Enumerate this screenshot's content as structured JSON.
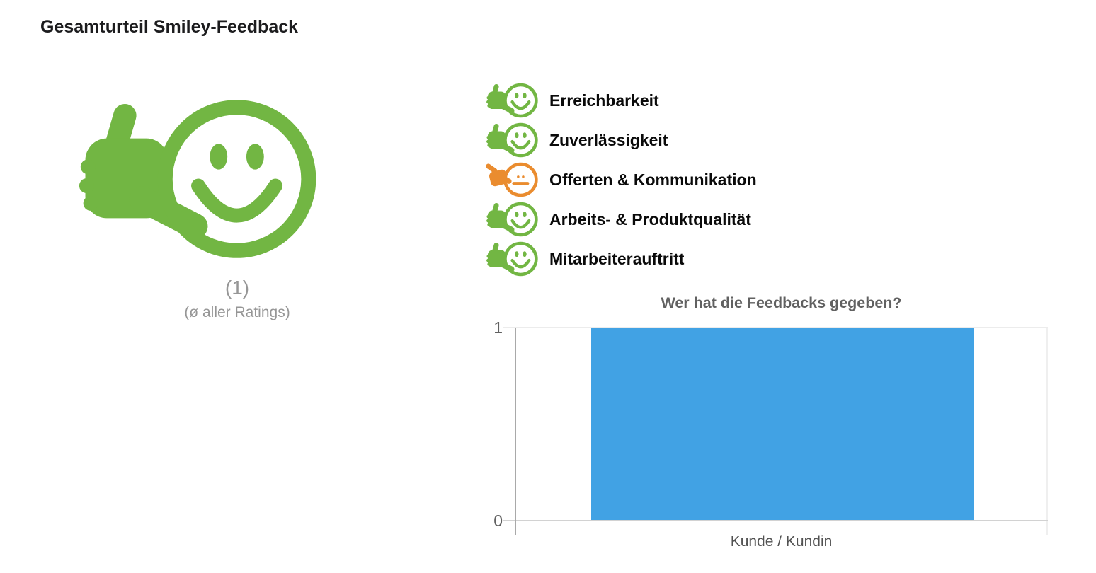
{
  "page": {
    "title": "Gesamturteil Smiley-Feedback"
  },
  "overall": {
    "icon": "thumbs-up-smiley-icon",
    "rating_count": "(1)",
    "rating_caption": "(ø aller Ratings)"
  },
  "categories": [
    {
      "label": "Erreichbarkeit",
      "rating": "positive",
      "icon": "thumbs-up-smiley-icon",
      "color": "#72B643"
    },
    {
      "label": "Zuverlässigkeit",
      "rating": "positive",
      "icon": "thumbs-up-smiley-icon",
      "color": "#72B643"
    },
    {
      "label": "Offerten & Kommunikation",
      "rating": "neutral",
      "icon": "neutral-smiley-icon",
      "color": "#EA8C2F"
    },
    {
      "label": "Arbeits- & Produktqualität",
      "rating": "positive",
      "icon": "thumbs-up-smiley-icon",
      "color": "#72B643"
    },
    {
      "label": "Mitarbeiterauftritt",
      "rating": "positive",
      "icon": "thumbs-up-smiley-icon",
      "color": "#72B643"
    }
  ],
  "chart_data": {
    "type": "bar",
    "title": "Wer hat die Feedbacks gegeben?",
    "categories": [
      "Kunde / Kundin"
    ],
    "values": [
      1
    ],
    "xlabel": "Kunde / Kundin",
    "ylabel": "",
    "ylim": [
      0,
      1
    ],
    "yticks": [
      0,
      1
    ],
    "bar_color": "#41A2E4",
    "grid": "horizontal-gridline-at-1-and-baseline-at-0",
    "legend": "none"
  },
  "colors": {
    "positive": "#72B643",
    "neutral": "#EA8C2F",
    "bar": "#41A2E4",
    "title-text": "#1C1C1E",
    "muted-text": "#969696",
    "chart-text": "#616161"
  }
}
